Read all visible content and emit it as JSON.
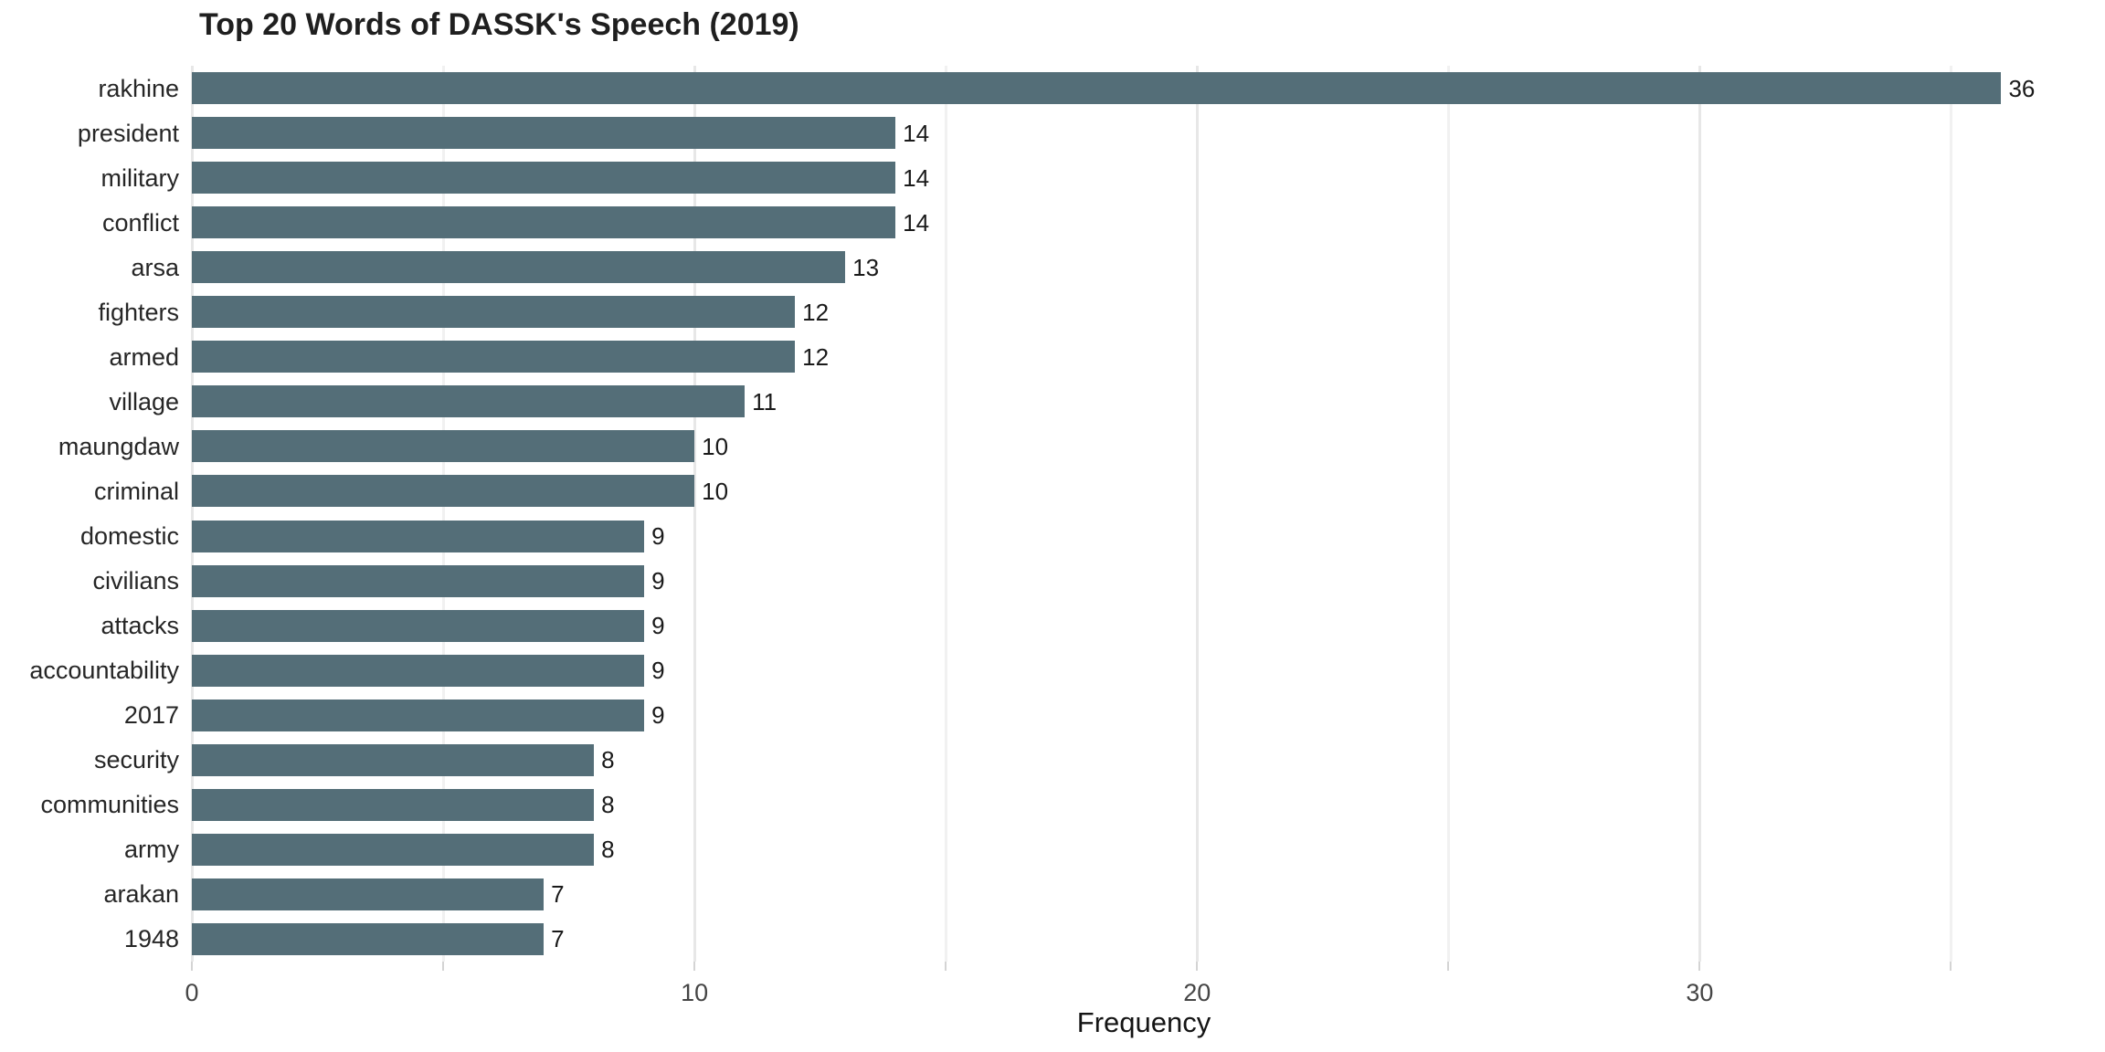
{
  "chart_data": {
    "type": "bar",
    "orientation": "horizontal",
    "title": "Top 20 Words of DASSK's Speech (2019)",
    "xlabel": "Frequency",
    "ylabel": "",
    "categories": [
      "rakhine",
      "president",
      "military",
      "conflict",
      "arsa",
      "fighters",
      "armed",
      "village",
      "maungdaw",
      "criminal",
      "domestic",
      "civilians",
      "attacks",
      "accountability",
      "2017",
      "security",
      "communities",
      "army",
      "arakan",
      "1948"
    ],
    "values": [
      36,
      14,
      14,
      14,
      13,
      12,
      12,
      11,
      10,
      10,
      9,
      9,
      9,
      9,
      9,
      8,
      8,
      8,
      7,
      7
    ],
    "xlim": [
      0,
      37.9
    ],
    "x_major_ticks": [
      0,
      10,
      20,
      30
    ],
    "x_minor_ticks": [
      5,
      15,
      25,
      35
    ],
    "grid": "vertical-only",
    "legend": "none",
    "colors": {
      "bar": "#546e78",
      "grid_major": "#e7e7e7",
      "grid_minor": "#f1f1f1",
      "axis_tick": "#d4d4d4",
      "title_text": "#1f1f1f",
      "category_text": "#262626",
      "value_text": "#1a1a1a",
      "axis_text": "#454545",
      "background": "#ffffff"
    }
  }
}
